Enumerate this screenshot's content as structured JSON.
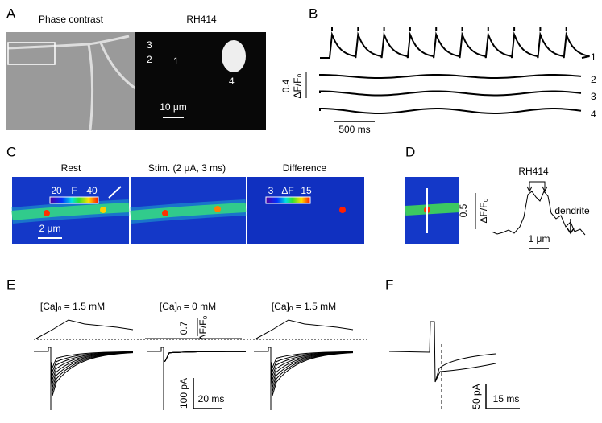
{
  "panel_a": {
    "label": "A",
    "title_left": "Phase contrast",
    "title_right": "RH414",
    "site_labels": [
      "3",
      "2",
      "1",
      "4"
    ],
    "scale": "10 μm"
  },
  "panel_b": {
    "label": "B",
    "scale_y": "0.4",
    "unit_y": "ΔF/F₀",
    "scale_x": "500 ms",
    "trace_labels": [
      "1",
      "2",
      "3",
      "4"
    ]
  },
  "panel_c": {
    "label": "C",
    "titles": [
      "Rest",
      "Stim. (2 μA, 3 ms)",
      "Difference"
    ],
    "colorbar_rest": [
      "20",
      "F",
      "40"
    ],
    "colorbar_difference": [
      "3",
      "ΔF",
      "15"
    ],
    "scale": "2 μm"
  },
  "panel_d": {
    "label": "D",
    "bracket": "RH414",
    "arrow": "dendrite",
    "scale_y": "0.5",
    "unit_y": "ΔF/F₀",
    "scale_x": "1 μm"
  },
  "panel_e": {
    "label": "E",
    "conditions": [
      "[Ca]ₒ = 1.5 mM",
      "[Ca]ₒ = 0 mM",
      "[Ca]ₒ = 1.5 mM"
    ],
    "scale_f": "0.7",
    "unit_f": "ΔF/F₀",
    "scale_i": "100 pA",
    "scale_t": "20 ms"
  },
  "panel_f": {
    "label": "F",
    "scale_i": "50 pA",
    "scale_t": "15 ms"
  }
}
